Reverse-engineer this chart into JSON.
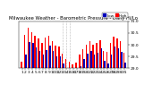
{
  "title": "Milwaukee Weather - Barometric Pressure - Daily Hi/Lo",
  "background": "#ffffff",
  "high_color": "#ff0000",
  "low_color": "#0000bb",
  "ylim": [
    29.0,
    31.0
  ],
  "yticks": [
    29.0,
    29.5,
    30.0,
    30.5,
    31.0
  ],
  "days": [
    1,
    2,
    3,
    4,
    5,
    6,
    7,
    8,
    9,
    10,
    11,
    12,
    13,
    14,
    15,
    16,
    17,
    18,
    19,
    20,
    21,
    22,
    23,
    24,
    25,
    26,
    27,
    28,
    29,
    30,
    31
  ],
  "highs": [
    29.25,
    30.42,
    30.7,
    30.52,
    30.38,
    30.25,
    30.05,
    30.3,
    30.35,
    30.15,
    29.95,
    29.92,
    29.6,
    29.38,
    29.25,
    29.15,
    29.22,
    29.55,
    29.8,
    30.0,
    30.15,
    29.98,
    30.05,
    30.18,
    29.7,
    29.68,
    30.08,
    30.32,
    30.25,
    30.12,
    29.65
  ],
  "lows": [
    28.95,
    29.55,
    30.1,
    30.05,
    29.88,
    29.7,
    29.55,
    29.75,
    29.95,
    29.72,
    29.5,
    29.48,
    29.18,
    28.9,
    28.85,
    28.8,
    28.75,
    29.05,
    29.38,
    29.6,
    29.72,
    29.55,
    29.65,
    29.82,
    29.28,
    29.18,
    29.58,
    29.9,
    29.85,
    29.68,
    29.22
  ],
  "dotted_lines": [
    13,
    14,
    15
  ],
  "legend_high": "High",
  "legend_low": "Low",
  "tick_fontsize": 3.2,
  "title_fontsize": 3.8,
  "bar_width": 0.38
}
